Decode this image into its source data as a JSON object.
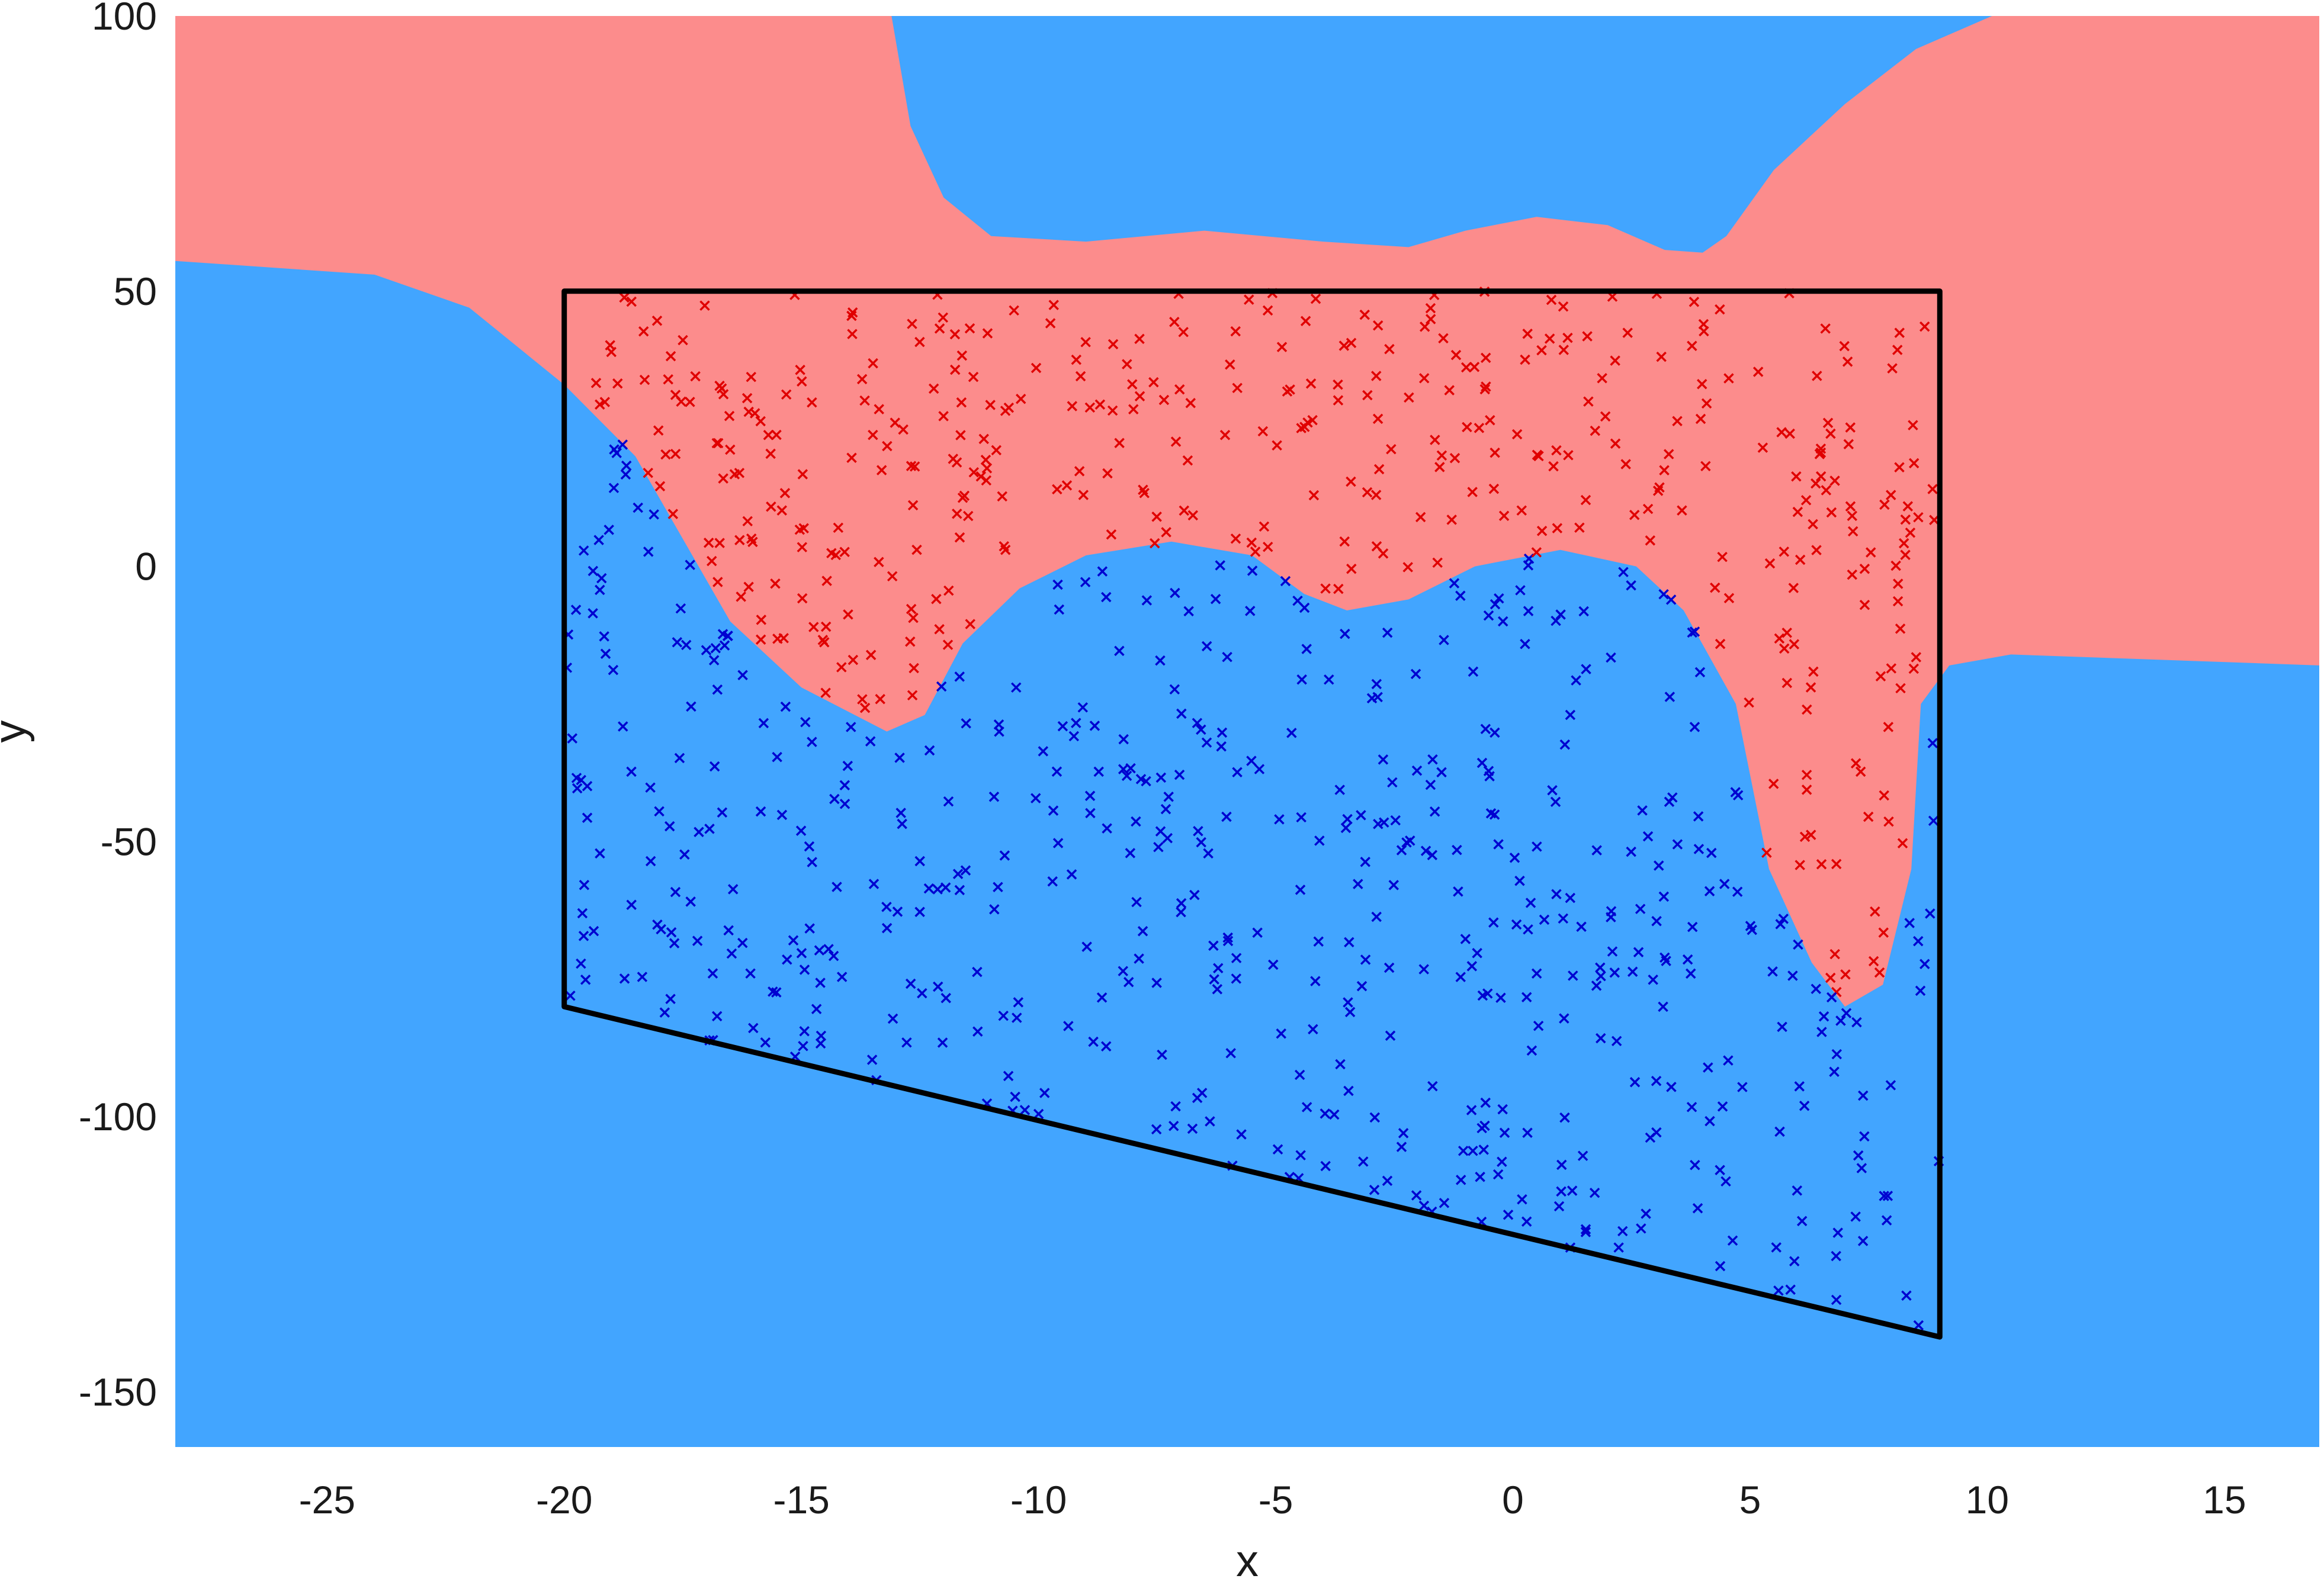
{
  "chart_data": {
    "type": "scatter",
    "title": "",
    "xlabel": "x",
    "ylabel": "y",
    "xlim": [
      -28.2,
      17
    ],
    "ylim": [
      -160,
      100
    ],
    "xticks": [
      -25,
      -20,
      -15,
      -10,
      -5,
      0,
      5,
      10,
      15
    ],
    "yticks": [
      -150,
      -100,
      -50,
      0,
      50,
      100
    ],
    "grid": false,
    "legend": "none",
    "colors": {
      "red_region": "#fc8c8c",
      "blue_region": "#42a5ff",
      "red_points": "#e00000",
      "blue_points": "#0000d0",
      "outline": "#000000"
    },
    "outline_polygon": [
      [
        -20,
        50
      ],
      [
        9,
        50
      ],
      [
        9,
        -140
      ],
      [
        -20,
        -80
      ]
    ],
    "decision_boundary": {
      "left_boundary": [
        [
          -28.2,
          55.5
        ],
        [
          -24,
          53
        ],
        [
          -22,
          47
        ],
        [
          -20,
          33
        ],
        [
          -18.5,
          20
        ],
        [
          -17.5,
          5
        ],
        [
          -16.5,
          -10
        ],
        [
          -15,
          -22
        ],
        [
          -13.2,
          -30
        ],
        [
          -12.4,
          -27
        ],
        [
          -11.6,
          -14
        ],
        [
          -10.4,
          -4
        ],
        [
          -9,
          2
        ],
        [
          -7.2,
          4.5
        ],
        [
          -5.5,
          2
        ],
        [
          -4.4,
          -5
        ],
        [
          -3.5,
          -8
        ],
        [
          -2.2,
          -6
        ],
        [
          -0.8,
          0
        ],
        [
          1,
          3
        ],
        [
          2.6,
          0
        ],
        [
          3.6,
          -8
        ],
        [
          4.7,
          -25
        ],
        [
          5.4,
          -55
        ],
        [
          6.3,
          -72
        ],
        [
          7,
          -80
        ],
        [
          7.8,
          -76
        ],
        [
          8.4,
          -55
        ],
        [
          8.6,
          -25
        ],
        [
          9.2,
          -18
        ],
        [
          10.5,
          -16
        ],
        [
          17,
          -18
        ]
      ],
      "top_blue_region": [
        [
          -13.1,
          100
        ],
        [
          -12.7,
          80
        ],
        [
          -12,
          67
        ],
        [
          -11,
          60
        ],
        [
          -9,
          59
        ],
        [
          -6.5,
          61
        ],
        [
          -4,
          59
        ],
        [
          -2.2,
          58
        ],
        [
          -1,
          61
        ],
        [
          0.5,
          63.5
        ],
        [
          2,
          62
        ],
        [
          3.2,
          57.5
        ],
        [
          4,
          57
        ],
        [
          4.5,
          60
        ],
        [
          5.5,
          72
        ],
        [
          7,
          84
        ],
        [
          8.5,
          94
        ],
        [
          10.1,
          100
        ]
      ]
    },
    "series": [
      {
        "name": "",
        "marker": "x",
        "color": "#e00000",
        "n_points": 420
      },
      {
        "name": "",
        "marker": "x",
        "color": "#0000d0",
        "n_points": 540
      }
    ]
  }
}
